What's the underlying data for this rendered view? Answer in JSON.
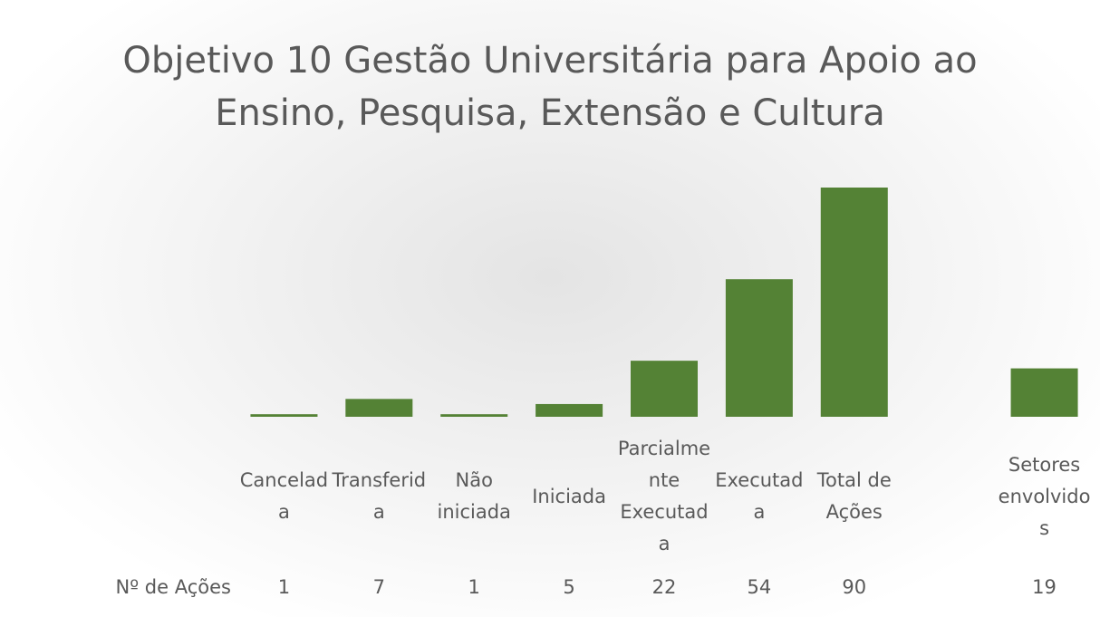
{
  "chart_data": {
    "type": "bar",
    "title": "Objetivo 10 Gestão Universitária para Apoio ao Ensino, Pesquisa, Extensão e Cultura",
    "categories": [
      "Cancelada",
      "Transferida",
      "Não iniciada",
      "Iniciada",
      "Parcialmente Executada",
      "Executada",
      "Total de Ações",
      null,
      "Setores envolvidos"
    ],
    "series": [
      {
        "name": "Nº de Ações",
        "color": "#548235",
        "values": [
          1,
          7,
          1,
          5,
          22,
          54,
          90,
          null,
          19
        ]
      }
    ]
  }
}
